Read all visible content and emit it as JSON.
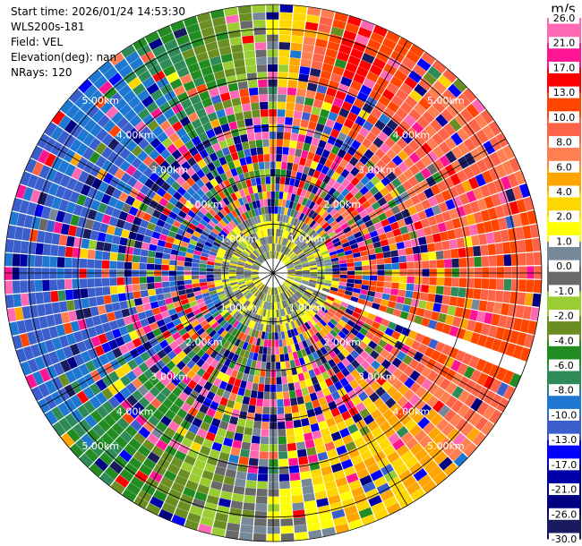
{
  "header": {
    "start_time": "Start time: 2026/01/24 14:53:30",
    "instrument": "WLS200s-181",
    "field": "Field: VEL",
    "elevation": "Elevation(deg): nan",
    "nrays": "NRays: 120"
  },
  "chart_data": {
    "type": "polar-ppi",
    "field": "VEL",
    "nrays": 120,
    "range_rings_km": [
      1,
      2,
      3,
      4,
      5
    ],
    "ring_label_texts": [
      "1.00km",
      "2.00km",
      "3.00km",
      "4.00km",
      "5.00km"
    ],
    "grid": true,
    "colorbar": {
      "unit": "m/s",
      "levels": [
        -30.0,
        -26.0,
        -21.0,
        -17.0,
        -13.0,
        -10.0,
        -8.0,
        -6.0,
        -4.0,
        -2.0,
        -1.0,
        0.0,
        1.0,
        2.0,
        4.0,
        6.0,
        8.0,
        10.0,
        13.0,
        17.0,
        21.0,
        26.0
      ],
      "labels": [
        "-30.0",
        "-26.0",
        "-21.0",
        "-17.0",
        "-13.0",
        "-10.0",
        "-8.0",
        "-6.0",
        "-4.0",
        "-2.0",
        "-1.0",
        "0.0",
        "1.0",
        "2.0",
        "4.0",
        "6.0",
        "8.0",
        "10.0",
        "13.0",
        "17.0",
        "21.0",
        "26.0"
      ],
      "colors": [
        "#1a1a5e",
        "#000080",
        "#0000a8",
        "#0000ff",
        "#3a5fcd",
        "#1e78d2",
        "#2e8b57",
        "#228b22",
        "#6b8e23",
        "#9acd32",
        "#696969",
        "#778899",
        "#ffff00",
        "#ffd700",
        "#ffa500",
        "#ff7f50",
        "#ff6347",
        "#ff4500",
        "#ff0000",
        "#ff1493",
        "#ff69b4"
      ]
    },
    "sector_velocity_ms": [
      {
        "azimuth_deg": 0,
        "velocity_ms": 0.0
      },
      {
        "azimuth_deg": 20,
        "velocity_ms": 15.0
      },
      {
        "azimuth_deg": 40,
        "velocity_ms": 8.0
      },
      {
        "azimuth_deg": 70,
        "velocity_ms": 9.0
      },
      {
        "azimuth_deg": 110,
        "velocity_ms": 11.0
      },
      {
        "azimuth_deg": 140,
        "velocity_ms": 5.0
      },
      {
        "azimuth_deg": 165,
        "velocity_ms": 3.0
      },
      {
        "azimuth_deg": 180,
        "velocity_ms": 0.0
      },
      {
        "azimuth_deg": 200,
        "velocity_ms": -2.0
      },
      {
        "azimuth_deg": 220,
        "velocity_ms": -5.0
      },
      {
        "azimuth_deg": 250,
        "velocity_ms": -11.0
      },
      {
        "azimuth_deg": 290,
        "velocity_ms": -11.0
      },
      {
        "azimuth_deg": 320,
        "velocity_ms": -9.0
      },
      {
        "azimuth_deg": 340,
        "velocity_ms": -5.0
      },
      {
        "azimuth_deg": 360,
        "velocity_ms": 0.0
      }
    ],
    "gap_azimuth_deg": 112
  }
}
